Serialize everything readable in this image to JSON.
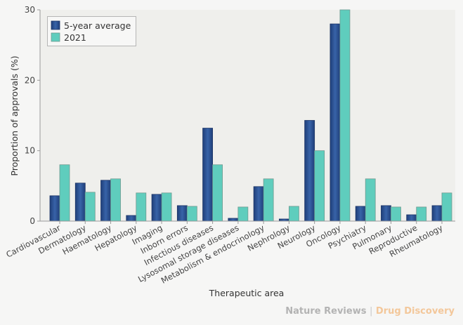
{
  "chart_data": {
    "type": "bar",
    "title": "",
    "xlabel": "Therapeutic area",
    "ylabel": "Proportion of approvals (%)",
    "ylim": [
      0,
      30
    ],
    "yticks": [
      0,
      10,
      20,
      30
    ],
    "grid": false,
    "legend_position": "top-left",
    "categories": [
      "Cardiovascular",
      "Dermatology",
      "Haematology",
      "Hepatology",
      "Imaging",
      "Inborn errors",
      "Infectious diseases",
      "Lysosomal storage diseases",
      "Metabolism & endocrinology",
      "Nephrology",
      "Neurology",
      "Oncology",
      "Psychiatry",
      "Pulmonary",
      "Reproductive",
      "Rheumatology"
    ],
    "series": [
      {
        "name": "5-year average",
        "color": "#274d8e",
        "values": [
          3.6,
          5.4,
          5.8,
          0.8,
          3.8,
          2.2,
          13.2,
          0.4,
          4.9,
          0.3,
          14.3,
          28.0,
          2.1,
          2.2,
          0.9,
          2.2
        ]
      },
      {
        "name": "2021",
        "color": "#5fcdbd",
        "values": [
          8.0,
          4.1,
          6.0,
          4.0,
          4.0,
          2.1,
          8.0,
          2.0,
          6.0,
          2.1,
          10.0,
          30.0,
          6.0,
          2.0,
          2.0,
          4.0
        ]
      }
    ]
  },
  "footer": {
    "publisher": "Nature Reviews",
    "separator": "|",
    "journal": "Drug Discovery"
  }
}
